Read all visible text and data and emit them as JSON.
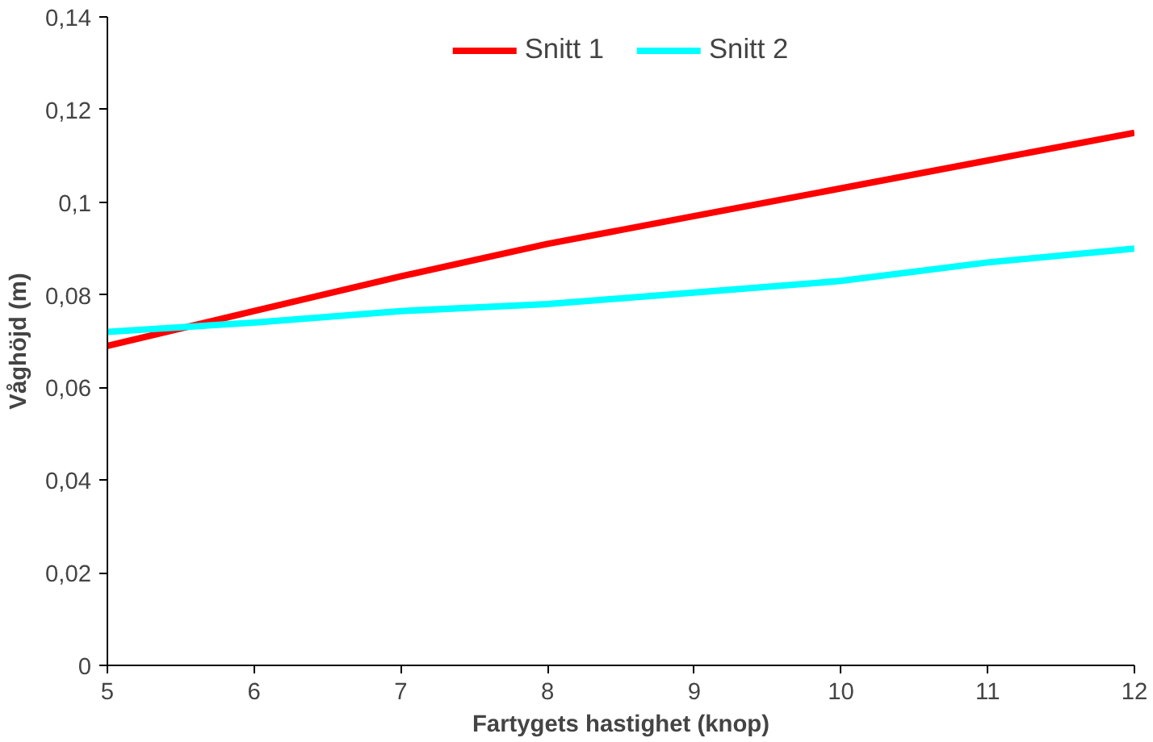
{
  "chart_data": {
    "type": "line",
    "xlabel": "Fartygets hastighet (knop)",
    "ylabel": "Våghöjd (m)",
    "x": [
      5,
      6,
      7,
      8,
      9,
      10,
      11,
      12
    ],
    "series": [
      {
        "name": "Snitt 1",
        "color": "#ff0000",
        "values": [
          0.069,
          0.0765,
          0.084,
          0.091,
          0.097,
          0.103,
          0.109,
          0.115
        ]
      },
      {
        "name": "Snitt 2",
        "color": "#00ffff",
        "values": [
          0.072,
          0.074,
          0.0765,
          0.078,
          0.0805,
          0.083,
          0.087,
          0.09
        ]
      }
    ],
    "xlim": [
      5,
      12
    ],
    "xticks": [
      5,
      6,
      7,
      8,
      9,
      10,
      11,
      12
    ],
    "ylim": [
      0,
      0.14
    ],
    "yticks": [
      {
        "value": 0,
        "label": "0"
      },
      {
        "value": 0.02,
        "label": "0,02"
      },
      {
        "value": 0.04,
        "label": "0,04"
      },
      {
        "value": 0.06,
        "label": "0,06"
      },
      {
        "value": 0.08,
        "label": "0,08"
      },
      {
        "value": 0.1,
        "label": "0,1"
      },
      {
        "value": 0.12,
        "label": "0,12"
      },
      {
        "value": 0.14,
        "label": "0,14"
      }
    ],
    "grid": false,
    "legend": "top",
    "marker": "none",
    "line_style": "solid"
  }
}
